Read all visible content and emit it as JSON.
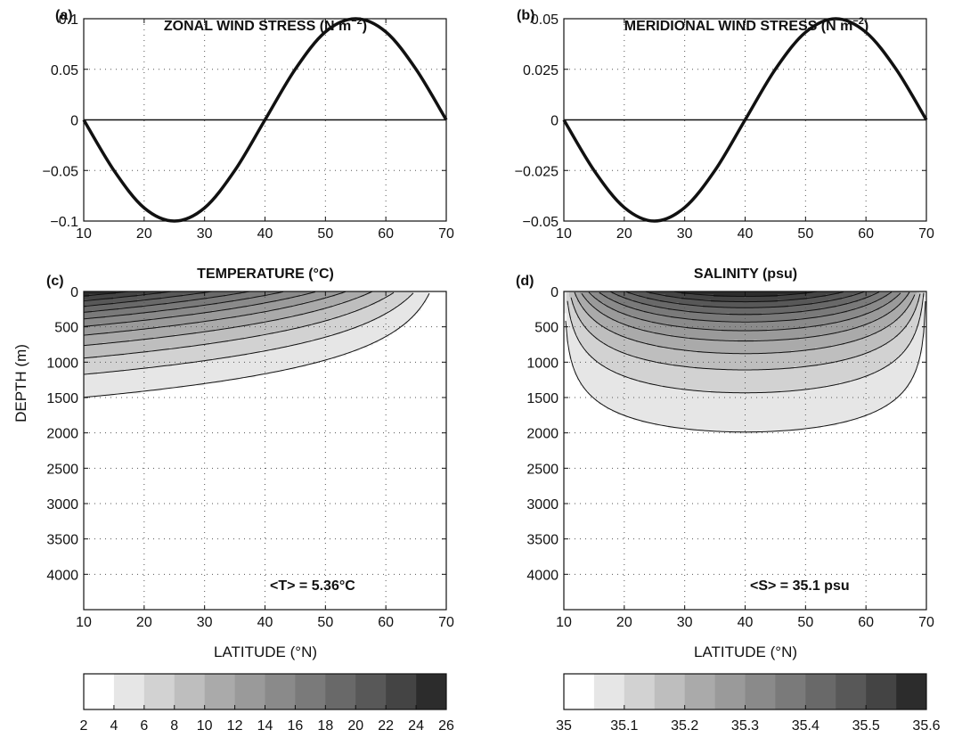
{
  "chart_data": [
    {
      "panel": "(a)",
      "type": "line",
      "title": "ZONAL WIND STRESS (N m",
      "title_sup": "−2",
      "title_close": ")",
      "xlim": [
        10,
        70
      ],
      "ylim": [
        -0.1,
        0.1
      ],
      "xticks": [
        "10",
        "20",
        "30",
        "40",
        "50",
        "60",
        "70"
      ],
      "yticks": [
        "−0.1",
        "−0.05",
        "0",
        "0.05",
        "0.1"
      ],
      "grid": true,
      "series": [
        {
          "x": [
            10,
            15,
            20,
            25,
            30,
            35,
            40,
            45,
            50,
            55,
            60,
            65,
            70
          ],
          "values": [
            0,
            -0.05,
            -0.087,
            -0.1,
            -0.087,
            -0.05,
            0,
            0.05,
            0.087,
            0.1,
            0.087,
            0.05,
            0
          ]
        }
      ]
    },
    {
      "panel": "(b)",
      "type": "line",
      "title": "MERIDIONAL WIND STRESS (N m",
      "title_sup": "−2",
      "title_close": ")",
      "xlim": [
        10,
        70
      ],
      "ylim": [
        -0.05,
        0.05
      ],
      "xticks": [
        "10",
        "20",
        "30",
        "40",
        "50",
        "60",
        "70"
      ],
      "yticks": [
        "−0.05",
        "−0.025",
        "0",
        "0.025",
        "0.05"
      ],
      "grid": true,
      "series": [
        {
          "x": [
            10,
            15,
            20,
            25,
            30,
            35,
            40,
            45,
            50,
            55,
            60,
            65,
            70
          ],
          "values": [
            0,
            -0.025,
            -0.0433,
            -0.05,
            -0.0433,
            -0.025,
            0,
            0.025,
            0.0433,
            0.05,
            0.0433,
            0.025,
            0
          ]
        }
      ]
    },
    {
      "panel": "(c)",
      "type": "heatmap",
      "title": "TEMPERATURE (°C)",
      "xlabel": "LATITUDE (°N)",
      "ylabel": "DEPTH (m)",
      "xlim": [
        10,
        70
      ],
      "ylim": [
        4500,
        0
      ],
      "xticks": [
        "10",
        "20",
        "30",
        "40",
        "50",
        "60",
        "70"
      ],
      "yticks": [
        "0",
        "500",
        "1000",
        "1500",
        "2000",
        "2500",
        "3000",
        "3500",
        "4000"
      ],
      "grid": true,
      "contour_levels": [
        4,
        6,
        8,
        10,
        12,
        14,
        16,
        18,
        20,
        22,
        24
      ],
      "field": "T = 26*(1-(lat-10)/60)^0.6*exp(-depth/800)",
      "annotation": "<T> = 5.36°C",
      "colorbar": {
        "ticks": [
          "2",
          "4",
          "6",
          "8",
          "10",
          "12",
          "14",
          "16",
          "18",
          "20",
          "22",
          "24",
          "26"
        ],
        "colors": [
          "#ffffff",
          "#e6e6e6",
          "#d2d2d2",
          "#bebebe",
          "#aaaaaa",
          "#9a9a9a",
          "#8a8a8a",
          "#7a7a7a",
          "#696969",
          "#585858",
          "#444444",
          "#2c2c2c"
        ]
      }
    },
    {
      "panel": "(d)",
      "type": "heatmap",
      "title": "SALINITY (psu)",
      "xlabel": "LATITUDE (°N)",
      "xlim": [
        10,
        70
      ],
      "ylim": [
        4500,
        0
      ],
      "xticks": [
        "10",
        "20",
        "30",
        "40",
        "50",
        "60",
        "70"
      ],
      "yticks": [
        "0",
        "500",
        "1000",
        "1500",
        "2000",
        "2500",
        "3000",
        "3500",
        "4000"
      ],
      "grid": true,
      "contour_levels": [
        35.05,
        35.1,
        35.15,
        35.2,
        35.25,
        35.3,
        35.35,
        35.4,
        35.45,
        35.5,
        35.55
      ],
      "field": "S = 35 + 0.6*(1-((lat-40)/30)^2)^0.5*exp(-depth/800)",
      "annotation": "<S> = 35.1 psu",
      "colorbar": {
        "ticks": [
          "35",
          "35.1",
          "35.2",
          "35.3",
          "35.4",
          "35.5",
          "35.6"
        ],
        "colors": [
          "#ffffff",
          "#e6e6e6",
          "#d2d2d2",
          "#bebebe",
          "#aaaaaa",
          "#9a9a9a",
          "#8a8a8a",
          "#7a7a7a",
          "#696969",
          "#585858",
          "#444444",
          "#2c2c2c"
        ]
      }
    }
  ]
}
